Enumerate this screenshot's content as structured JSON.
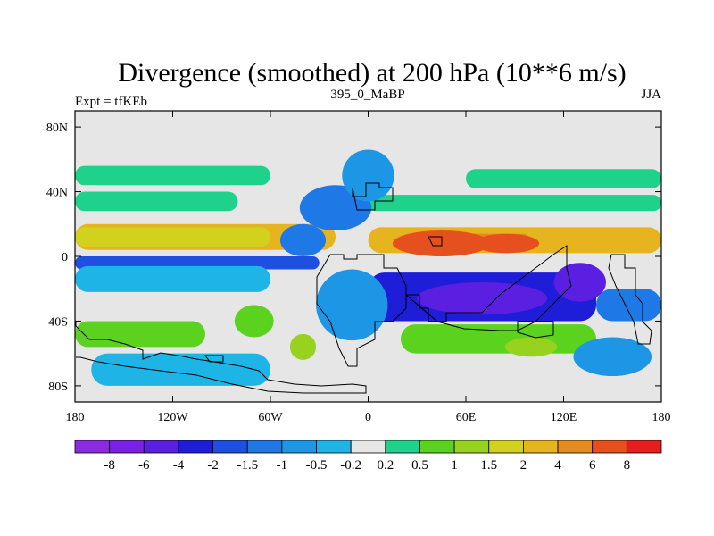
{
  "title": "Divergence (smoothed) at 200 hPa (10**6 m/s)",
  "left_label": "Expt = tfKEb",
  "center_label": "395_0_MaBP",
  "right_label": "JJA",
  "chart_data": {
    "type": "heatmap",
    "x_ticks": [
      {
        "value": -180,
        "label": "180"
      },
      {
        "value": -120,
        "label": "120W"
      },
      {
        "value": -60,
        "label": "60W"
      },
      {
        "value": 0,
        "label": "0"
      },
      {
        "value": 60,
        "label": "60E"
      },
      {
        "value": 120,
        "label": "120E"
      },
      {
        "value": 180,
        "label": "180"
      }
    ],
    "y_ticks": [
      {
        "value": 80,
        "label": "80N"
      },
      {
        "value": 40,
        "label": "40N"
      },
      {
        "value": 0,
        "label": "0"
      },
      {
        "value": -40,
        "label": "40S"
      },
      {
        "value": -80,
        "label": "80S"
      }
    ],
    "xlim": [
      -180,
      180
    ],
    "ylim": [
      -90,
      90
    ],
    "colorbar": {
      "colors": [
        "#8a2be2",
        "#7a21e6",
        "#5a1fe0",
        "#1e1ed8",
        "#1e4fe0",
        "#1e78e6",
        "#1e96e6",
        "#1eb4e6",
        "#e6e6e6",
        "#1ed28c",
        "#5ad21e",
        "#96d21e",
        "#d2d21e",
        "#e6b41e",
        "#e68c1e",
        "#e6501e",
        "#e61e1e"
      ],
      "labels": [
        "-8",
        "-6",
        "-4",
        "-2",
        "-1.5",
        "-1",
        "-0.5",
        "-0.2",
        "0.2",
        "0.5",
        "1",
        "1.5",
        "2",
        "4",
        "6",
        "8"
      ]
    },
    "bands": [
      {
        "lat_top": 56,
        "lat_bottom": 44,
        "lon_start": -180,
        "lon_end": -60,
        "level": 9
      },
      {
        "lat_top": 54,
        "lat_bottom": 42,
        "lon_start": 60,
        "lon_end": 180,
        "level": 9
      },
      {
        "lat_top": 40,
        "lat_bottom": 28,
        "lon_start": -180,
        "lon_end": -80,
        "level": 9
      },
      {
        "lat_top": 38,
        "lat_bottom": 28,
        "lon_start": 0,
        "lon_end": 180,
        "level": 9
      },
      {
        "lat_top": 20,
        "lat_bottom": 4,
        "lon_start": -180,
        "lon_end": -20,
        "level": 13
      },
      {
        "lat_top": 18,
        "lat_bottom": 6,
        "lon_start": -180,
        "lon_end": -60,
        "level": 12
      },
      {
        "lat_top": 18,
        "lat_bottom": 2,
        "lon_start": 0,
        "lon_end": 180,
        "level": 13
      },
      {
        "lat_top": 14,
        "lat_bottom": 4,
        "lon_start": 20,
        "lon_end": 100,
        "level": 14
      },
      {
        "lat_top": 0,
        "lat_bottom": -8,
        "lon_start": -180,
        "lon_end": -30,
        "level": 4
      },
      {
        "lat_top": -6,
        "lat_bottom": -22,
        "lon_start": -180,
        "lon_end": -60,
        "level": 7
      },
      {
        "lat_top": -10,
        "lat_bottom": -40,
        "lon_start": 0,
        "lon_end": 140,
        "level": 3
      },
      {
        "lat_top": -20,
        "lat_bottom": -40,
        "lon_start": 140,
        "lon_end": 180,
        "level": 5
      },
      {
        "lat_top": -40,
        "lat_bottom": -56,
        "lon_start": -180,
        "lon_end": -100,
        "level": 10
      },
      {
        "lat_top": -42,
        "lat_bottom": -60,
        "lon_start": 20,
        "lon_end": 140,
        "level": 10
      },
      {
        "lat_top": -60,
        "lat_bottom": -80,
        "lon_start": -170,
        "lon_end": -60,
        "level": 7
      }
    ],
    "blobs": [
      {
        "lon": -20,
        "lat": 30,
        "rlon": 22,
        "rlat": 14,
        "level": 5
      },
      {
        "lon": 0,
        "lat": 50,
        "rlon": 16,
        "rlat": 16,
        "level": 6
      },
      {
        "lon": -40,
        "lat": 10,
        "rlon": 14,
        "rlat": 10,
        "level": 5
      },
      {
        "lon": 45,
        "lat": 8,
        "rlon": 30,
        "rlat": 8,
        "level": 15
      },
      {
        "lon": 85,
        "lat": 8,
        "rlon": 20,
        "rlat": 6,
        "level": 15
      },
      {
        "lon": 70,
        "lat": -26,
        "rlon": 40,
        "rlat": 10,
        "level": 2
      },
      {
        "lon": 130,
        "lat": -16,
        "rlon": 16,
        "rlat": 12,
        "level": 2
      },
      {
        "lon": -10,
        "lat": -30,
        "rlon": 22,
        "rlat": 22,
        "level": 6
      },
      {
        "lon": -40,
        "lat": -56,
        "rlon": 8,
        "rlat": 8,
        "level": 11
      },
      {
        "lon": 100,
        "lat": -56,
        "rlon": 16,
        "rlat": 6,
        "level": 11
      },
      {
        "lon": 150,
        "lat": -62,
        "rlon": 24,
        "rlat": 12,
        "level": 6
      },
      {
        "lon": -70,
        "lat": -40,
        "rlon": 12,
        "rlat": 10,
        "level": 10
      }
    ]
  }
}
